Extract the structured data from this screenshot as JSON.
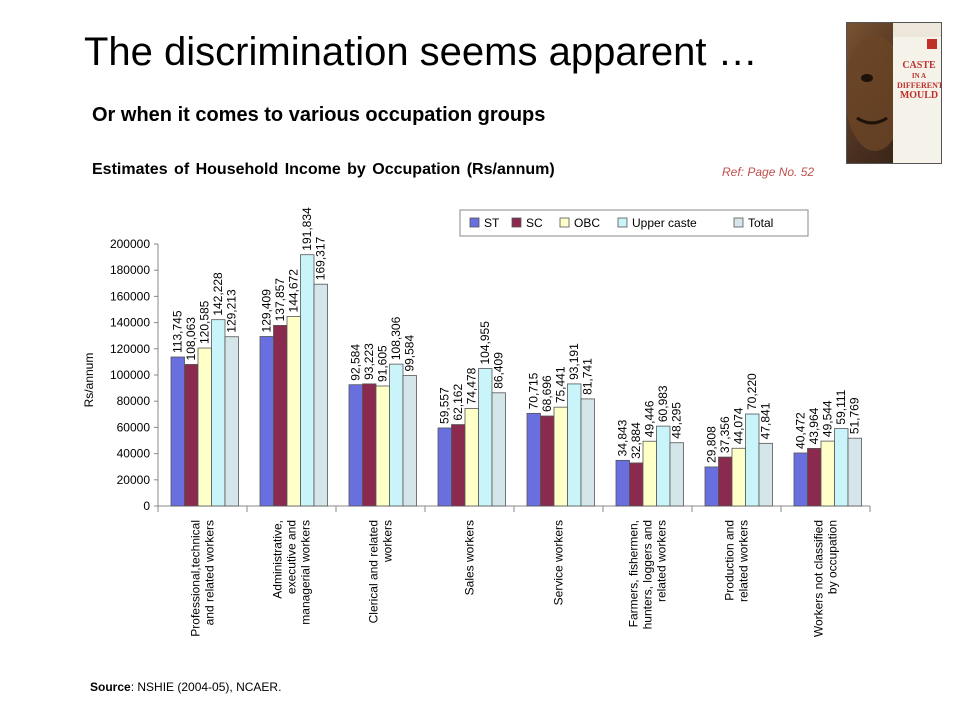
{
  "header": {
    "title": "The discrimination seems apparent …",
    "subtitle": "Or when it comes to various occupation groups",
    "reference": "Ref: Page No. 52"
  },
  "book_cover": {
    "title_lines": [
      "CASTE",
      "IN A",
      "DIFFERENT",
      "MOULD"
    ],
    "accent": "#c0302a"
  },
  "source": {
    "label": "Source",
    "text": ": NSHIE (2004-05), NCAER."
  },
  "colors": {
    "ST": "#6a6fe0",
    "SC": "#8b2a4f",
    "OBC": "#ffffc8",
    "Upper caste": "#c8f4fa",
    "Total": "#d4e6ea"
  },
  "chart_data": {
    "type": "bar",
    "title": "Estimates of Household Income by  Occupation  (Rs/annum)",
    "ylabel": "Rs/annum",
    "xlabel": "",
    "ylim": [
      0,
      200000
    ],
    "yticks": [
      0,
      20000,
      40000,
      60000,
      80000,
      100000,
      120000,
      140000,
      160000,
      180000,
      200000
    ],
    "legend_position": "top-right",
    "grid": false,
    "categories": [
      [
        "Professional,technical",
        "and related workers"
      ],
      [
        "Administrative,",
        "executive and",
        "managerial workers"
      ],
      [
        "Clerical and related",
        "workers"
      ],
      [
        "Sales workers"
      ],
      [
        "Service workers"
      ],
      [
        "Farmers, fishermen,",
        "hunters, loggers and",
        "related workers"
      ],
      [
        "Production and",
        "related workers"
      ],
      [
        "Workers not classified",
        "by occupation"
      ]
    ],
    "series": [
      {
        "name": "ST",
        "values": [
          113745,
          129409,
          92584,
          59557,
          70715,
          34843,
          29808,
          40472
        ],
        "labels": [
          "113,745",
          "129,409",
          "92,584",
          "59,557",
          "70,715",
          "34,843",
          "29,808",
          "40,472"
        ]
      },
      {
        "name": "SC",
        "values": [
          108063,
          137857,
          93223,
          62162,
          68696,
          32884,
          37356,
          43964
        ],
        "labels": [
          "108,063",
          "137,857",
          "93,223",
          "62,162",
          "68,696",
          "32,884",
          "37,356",
          "43,964"
        ]
      },
      {
        "name": "OBC",
        "values": [
          120585,
          144672,
          91605,
          74478,
          75441,
          49446,
          44074,
          49544
        ],
        "labels": [
          "120,585",
          "144,672",
          "91,605",
          "74,478",
          "75,441",
          "49,446",
          "44,074",
          "49,544"
        ]
      },
      {
        "name": "Upper caste",
        "values": [
          142228,
          191834,
          108306,
          104955,
          93191,
          60983,
          70220,
          59111
        ],
        "labels": [
          "142,228",
          "191,834",
          "108,306",
          "104,955",
          "93,191",
          "60,983",
          "70,220",
          "59,111"
        ]
      },
      {
        "name": "Total",
        "values": [
          129213,
          169317,
          99584,
          86409,
          81741,
          48295,
          47841,
          51769
        ],
        "labels": [
          "129,213",
          "169,317",
          "99,584",
          "86,409",
          "81,741",
          "48,295",
          "47,841",
          "51,769"
        ]
      }
    ]
  }
}
